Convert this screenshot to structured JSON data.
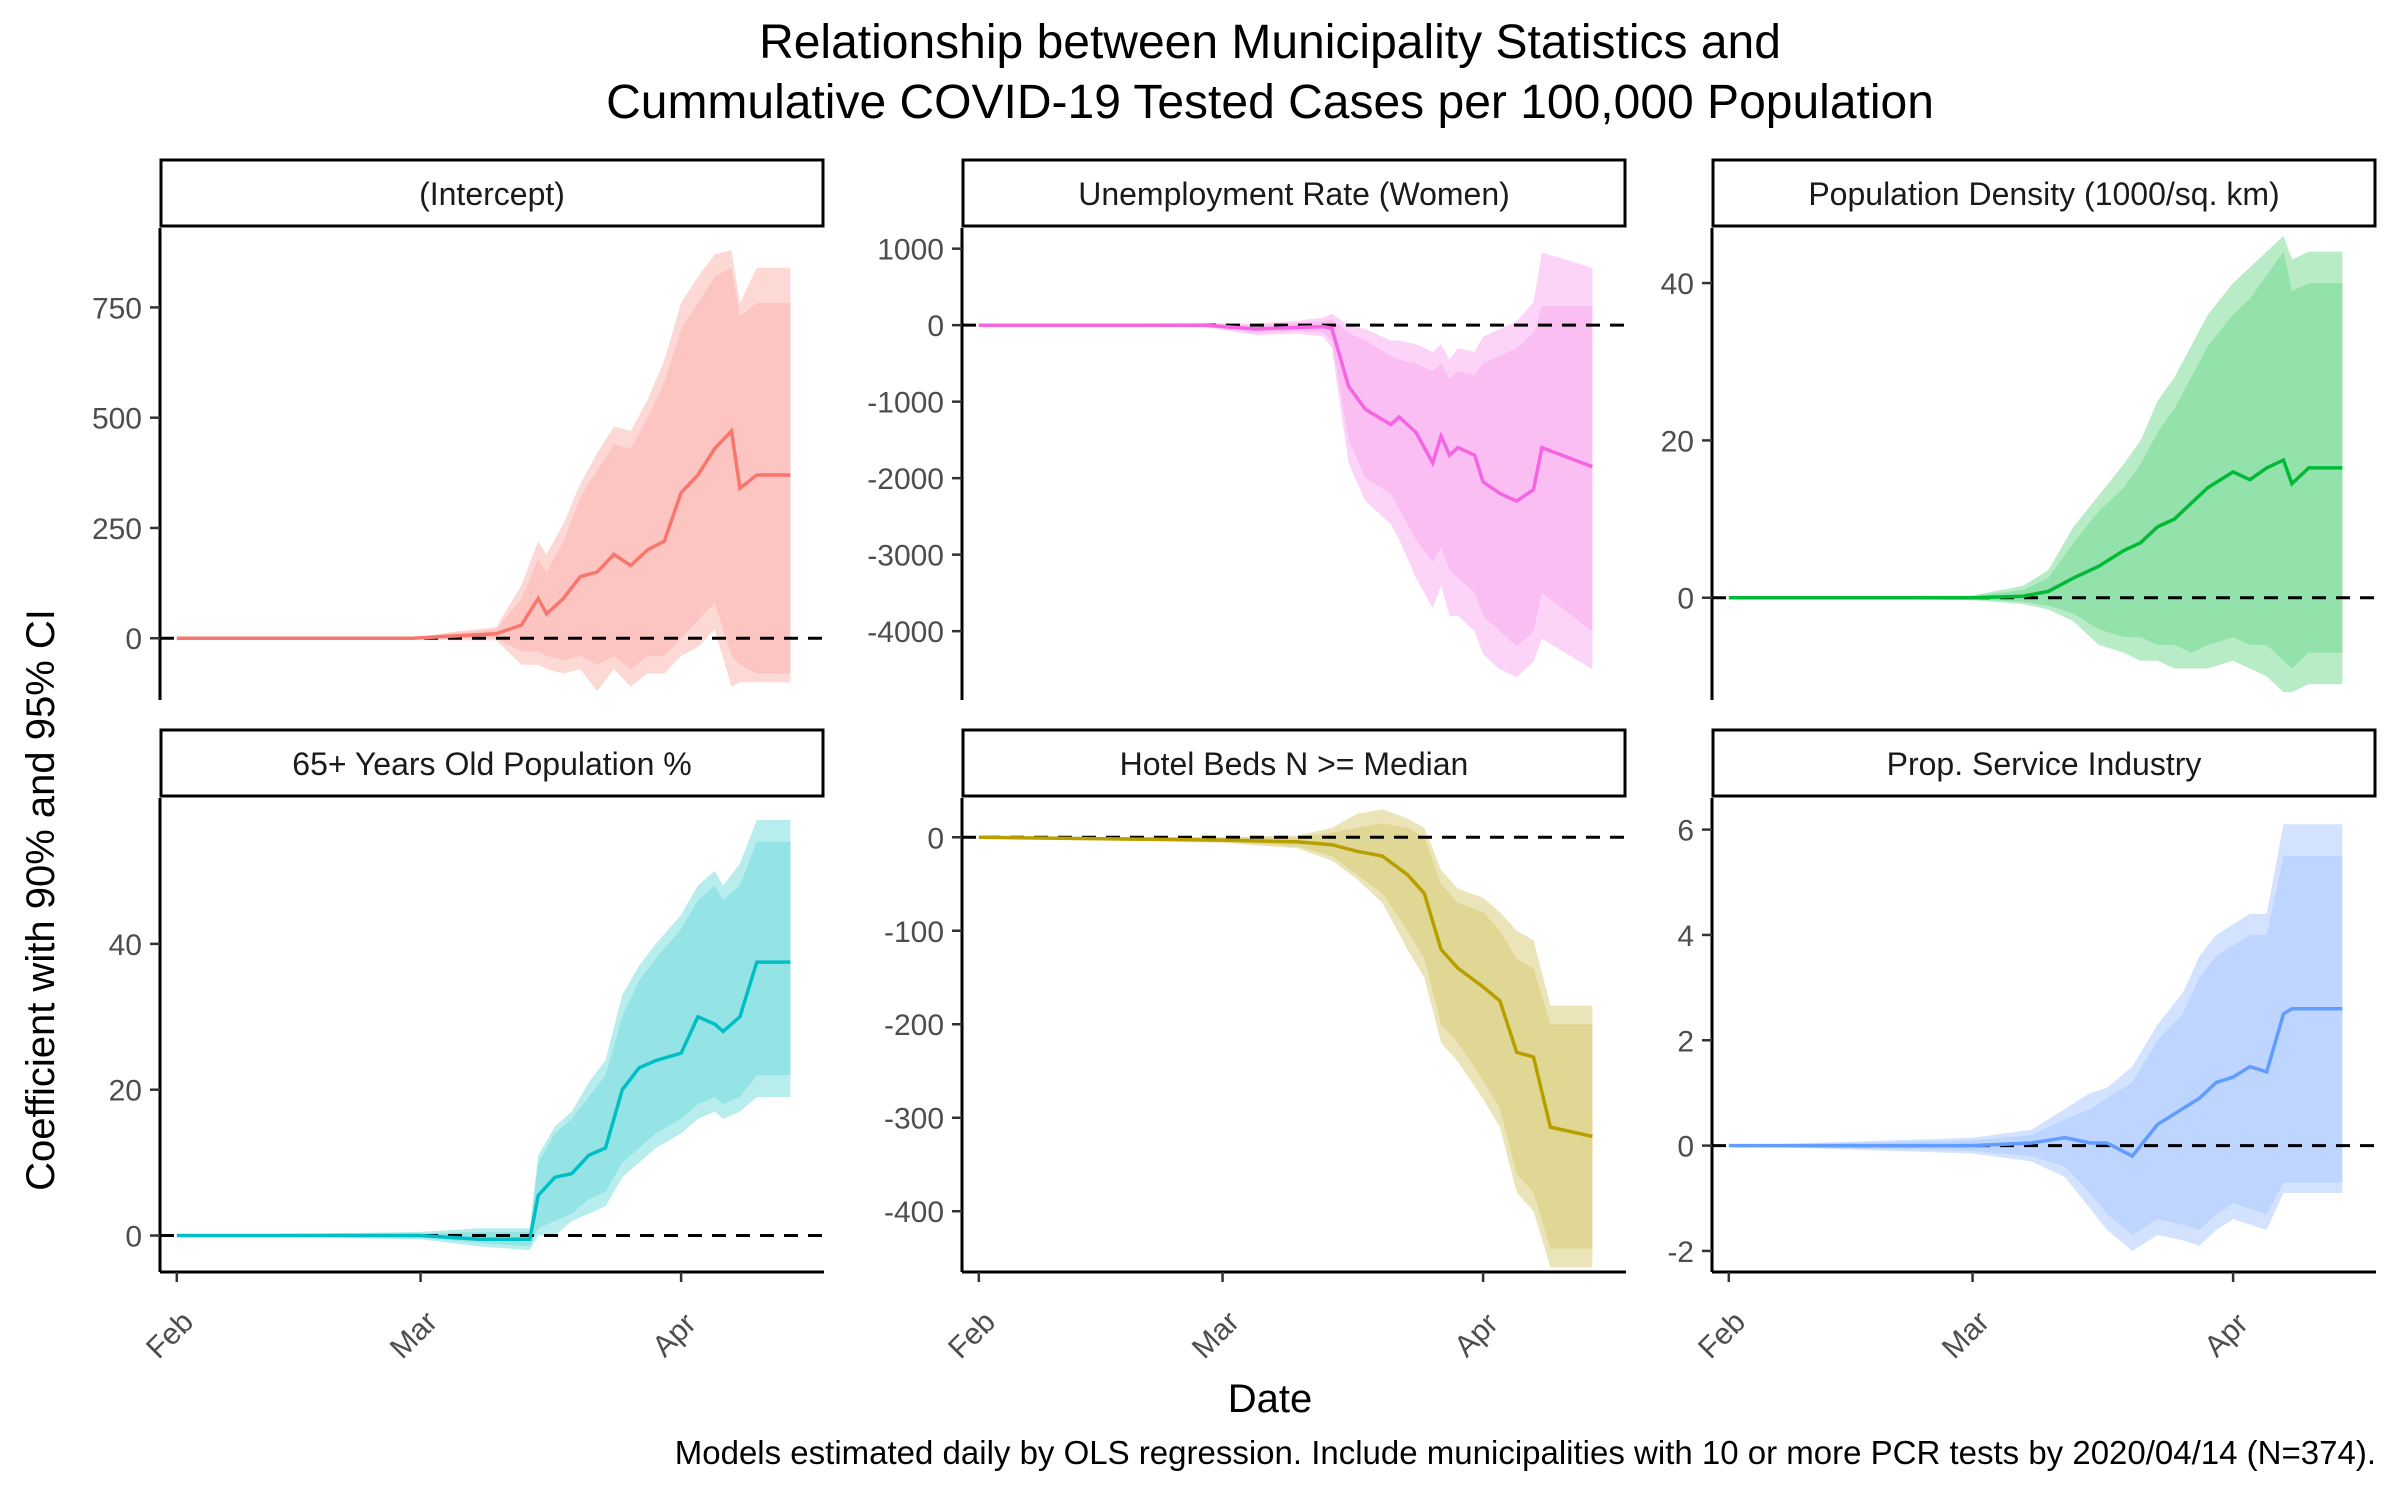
{
  "title_line1": "Relationship between Municipality Statistics and",
  "title_line2": "Cummulative COVID-19 Tested Cases per 100,000 Population",
  "xlabel": "Date",
  "ylabel": "Coefficient with 90% and 95% CI",
  "caption": "Models estimated daily by OLS regression. Include municipalities with 10 or more PCR tests by 2020/04/14 (N=374).",
  "x_ticks": [
    "Feb",
    "Mar",
    "Apr"
  ],
  "chart_data": [
    {
      "type": "line",
      "title": "(Intercept)",
      "color": "#F8766D",
      "x_range": [
        "2020-02-01",
        "2020-04-14"
      ],
      "ylim": [
        -140,
        930
      ],
      "yticks": [
        0,
        250,
        500,
        750
      ],
      "x": [
        "2020-02-01",
        "2020-02-29",
        "2020-03-05",
        "2020-03-10",
        "2020-03-13",
        "2020-03-15",
        "2020-03-16",
        "2020-03-18",
        "2020-03-20",
        "2020-03-22",
        "2020-03-24",
        "2020-03-26",
        "2020-03-28",
        "2020-03-30",
        "2020-04-01",
        "2020-04-03",
        "2020-04-05",
        "2020-04-07",
        "2020-04-08",
        "2020-04-10",
        "2020-04-14"
      ],
      "estimate": [
        0,
        0,
        5,
        10,
        30,
        90,
        55,
        90,
        140,
        150,
        190,
        165,
        200,
        220,
        330,
        370,
        430,
        470,
        340,
        370,
        370
      ],
      "ci90": [
        [
          0,
          0
        ],
        [
          0,
          0
        ],
        [
          0,
          12
        ],
        [
          0,
          20
        ],
        [
          -30,
          90
        ],
        [
          -30,
          180
        ],
        [
          -40,
          150
        ],
        [
          -50,
          220
        ],
        [
          -40,
          320
        ],
        [
          -60,
          380
        ],
        [
          -40,
          440
        ],
        [
          -70,
          430
        ],
        [
          -40,
          500
        ],
        [
          -40,
          580
        ],
        [
          0,
          700
        ],
        [
          40,
          760
        ],
        [
          80,
          820
        ],
        [
          -40,
          840
        ],
        [
          -60,
          730
        ],
        [
          -80,
          760
        ],
        [
          -80,
          760
        ]
      ],
      "ci95": [
        [
          0,
          0
        ],
        [
          0,
          0
        ],
        [
          -5,
          15
        ],
        [
          -5,
          25
        ],
        [
          -60,
          120
        ],
        [
          -60,
          220
        ],
        [
          -70,
          190
        ],
        [
          -80,
          260
        ],
        [
          -70,
          350
        ],
        [
          -120,
          420
        ],
        [
          -70,
          480
        ],
        [
          -110,
          470
        ],
        [
          -80,
          540
        ],
        [
          -80,
          630
        ],
        [
          -40,
          760
        ],
        [
          -20,
          820
        ],
        [
          20,
          870
        ],
        [
          -110,
          880
        ],
        [
          -100,
          760
        ],
        [
          -100,
          840
        ],
        [
          -100,
          840
        ]
      ]
    },
    {
      "type": "line",
      "title": "Unemployment Rate (Women)",
      "color": "#F564E3",
      "x_range": [
        "2020-02-01",
        "2020-04-14"
      ],
      "ylim": [
        -4900,
        1270
      ],
      "yticks": [
        -4000,
        -3000,
        -2000,
        -1000,
        0,
        1000
      ],
      "x": [
        "2020-02-01",
        "2020-02-28",
        "2020-03-05",
        "2020-03-10",
        "2020-03-13",
        "2020-03-14",
        "2020-03-16",
        "2020-03-18",
        "2020-03-21",
        "2020-03-22",
        "2020-03-24",
        "2020-03-26",
        "2020-03-27",
        "2020-03-28",
        "2020-03-29",
        "2020-03-31",
        "2020-04-01",
        "2020-04-03",
        "2020-04-05",
        "2020-04-07",
        "2020-04-08",
        "2020-04-14"
      ],
      "estimate": [
        0,
        0,
        -50,
        -30,
        -20,
        -40,
        -800,
        -1100,
        -1300,
        -1200,
        -1400,
        -1800,
        -1450,
        -1700,
        -1600,
        -1700,
        -2050,
        -2200,
        -2300,
        -2150,
        -1600,
        -1850
      ],
      "ci90": [
        [
          0,
          0
        ],
        [
          -20,
          20
        ],
        [
          -100,
          0
        ],
        [
          -80,
          30
        ],
        [
          -100,
          50
        ],
        [
          -200,
          80
        ],
        [
          -1500,
          -100
        ],
        [
          -2000,
          -200
        ],
        [
          -2200,
          -400
        ],
        [
          -2400,
          -450
        ],
        [
          -2800,
          -500
        ],
        [
          -3100,
          -600
        ],
        [
          -2900,
          -500
        ],
        [
          -3200,
          -700
        ],
        [
          -3300,
          -600
        ],
        [
          -3500,
          -650
        ],
        [
          -3800,
          -500
        ],
        [
          -4000,
          -400
        ],
        [
          -4200,
          -300
        ],
        [
          -4000,
          -100
        ],
        [
          -3500,
          250
        ],
        [
          -4000,
          250
        ]
      ],
      "ci95": [
        [
          0,
          0
        ],
        [
          -30,
          30
        ],
        [
          -130,
          20
        ],
        [
          -110,
          60
        ],
        [
          -150,
          100
        ],
        [
          -300,
          150
        ],
        [
          -1800,
          0
        ],
        [
          -2300,
          -50
        ],
        [
          -2600,
          -200
        ],
        [
          -2800,
          -200
        ],
        [
          -3300,
          -250
        ],
        [
          -3700,
          -350
        ],
        [
          -3400,
          -250
        ],
        [
          -3800,
          -450
        ],
        [
          -3800,
          -300
        ],
        [
          -4000,
          -350
        ],
        [
          -4300,
          -150
        ],
        [
          -4500,
          -50
        ],
        [
          -4600,
          50
        ],
        [
          -4400,
          300
        ],
        [
          -4100,
          950
        ],
        [
          -4500,
          750
        ]
      ]
    },
    {
      "type": "line",
      "title": "Population Density (1000/sq. km)",
      "color": "#00BA38",
      "x_range": [
        "2020-02-01",
        "2020-04-14"
      ],
      "ylim": [
        -13,
        47
      ],
      "yticks": [
        0,
        20,
        40
      ],
      "x": [
        "2020-02-01",
        "2020-03-01",
        "2020-03-07",
        "2020-03-10",
        "2020-03-13",
        "2020-03-16",
        "2020-03-19",
        "2020-03-21",
        "2020-03-23",
        "2020-03-25",
        "2020-03-27",
        "2020-03-29",
        "2020-04-01",
        "2020-04-03",
        "2020-04-05",
        "2020-04-07",
        "2020-04-08",
        "2020-04-10",
        "2020-04-14"
      ],
      "estimate": [
        0,
        0,
        0.2,
        0.8,
        2.5,
        4,
        6,
        7,
        9,
        10,
        12,
        14,
        16,
        15,
        16.5,
        17.5,
        14.5,
        16.5,
        16.5
      ],
      "ci90": [
        [
          0,
          0
        ],
        [
          -0.2,
          0.2
        ],
        [
          -0.5,
          1
        ],
        [
          -1,
          2.5
        ],
        [
          -2,
          7
        ],
        [
          -4,
          11
        ],
        [
          -5,
          14
        ],
        [
          -5,
          17
        ],
        [
          -6,
          21
        ],
        [
          -6,
          24
        ],
        [
          -7,
          28
        ],
        [
          -6,
          32
        ],
        [
          -5,
          36
        ],
        [
          -6,
          38
        ],
        [
          -6,
          41
        ],
        [
          -8,
          44
        ],
        [
          -9,
          39
        ],
        [
          -7,
          40
        ],
        [
          -7,
          40
        ]
      ],
      "ci95": [
        [
          0,
          0
        ],
        [
          -0.3,
          0.3
        ],
        [
          -0.8,
          1.5
        ],
        [
          -1.5,
          3.5
        ],
        [
          -3,
          9
        ],
        [
          -6,
          13
        ],
        [
          -7,
          17
        ],
        [
          -8,
          20
        ],
        [
          -8,
          25
        ],
        [
          -9,
          28
        ],
        [
          -9,
          32
        ],
        [
          -9,
          36
        ],
        [
          -8,
          40
        ],
        [
          -9,
          42
        ],
        [
          -10,
          44
        ],
        [
          -12,
          46
        ],
        [
          -12,
          43
        ],
        [
          -11,
          44
        ],
        [
          -11,
          44
        ]
      ]
    },
    {
      "type": "line",
      "title": "65+ Years Old Population %",
      "color": "#00BFC4",
      "x_range": [
        "2020-02-01",
        "2020-04-14"
      ],
      "ylim": [
        -5,
        60
      ],
      "yticks": [
        0,
        20,
        40
      ],
      "x": [
        "2020-02-01",
        "2020-03-01",
        "2020-03-08",
        "2020-03-14",
        "2020-03-15",
        "2020-03-17",
        "2020-03-19",
        "2020-03-21",
        "2020-03-23",
        "2020-03-25",
        "2020-03-27",
        "2020-03-29",
        "2020-04-01",
        "2020-04-03",
        "2020-04-05",
        "2020-04-06",
        "2020-04-08",
        "2020-04-10",
        "2020-04-14"
      ],
      "estimate": [
        0,
        0,
        -0.5,
        -0.5,
        5.5,
        8,
        8.5,
        11,
        12,
        20,
        23,
        24,
        25,
        30,
        29,
        28,
        30,
        37.5,
        37.5
      ],
      "ci90": [
        [
          0,
          0
        ],
        [
          -0.3,
          0.3
        ],
        [
          -1,
          0.5
        ],
        [
          -1.5,
          0.5
        ],
        [
          1,
          10
        ],
        [
          2,
          14
        ],
        [
          3,
          16
        ],
        [
          5,
          19
        ],
        [
          6,
          22
        ],
        [
          10,
          30
        ],
        [
          12,
          35
        ],
        [
          14,
          38
        ],
        [
          16,
          42
        ],
        [
          18,
          46
        ],
        [
          19,
          48
        ],
        [
          18,
          46
        ],
        [
          19,
          48
        ],
        [
          22,
          54
        ],
        [
          22,
          54
        ]
      ],
      "ci95": [
        [
          0,
          0
        ],
        [
          -0.5,
          0.5
        ],
        [
          -1.5,
          1
        ],
        [
          -2,
          1
        ],
        [
          0,
          11
        ],
        [
          0,
          15
        ],
        [
          2,
          17
        ],
        [
          3,
          21
        ],
        [
          4,
          24
        ],
        [
          8,
          33
        ],
        [
          10,
          37
        ],
        [
          12,
          40
        ],
        [
          14,
          44
        ],
        [
          16,
          48
        ],
        [
          17,
          50
        ],
        [
          16,
          48
        ],
        [
          17,
          51
        ],
        [
          19,
          57
        ],
        [
          19,
          57
        ]
      ]
    },
    {
      "type": "line",
      "title": "Hotel Beds N >= Median",
      "color": "#B79F00",
      "x_range": [
        "2020-02-01",
        "2020-04-14"
      ],
      "ylim": [
        -465,
        42
      ],
      "yticks": [
        -400,
        -300,
        -200,
        -100,
        0
      ],
      "x": [
        "2020-02-01",
        "2020-03-01",
        "2020-03-10",
        "2020-03-14",
        "2020-03-17",
        "2020-03-20",
        "2020-03-23",
        "2020-03-25",
        "2020-03-27",
        "2020-03-29",
        "2020-04-01",
        "2020-04-03",
        "2020-04-05",
        "2020-04-07",
        "2020-04-09",
        "2020-04-14"
      ],
      "estimate": [
        0,
        -3,
        -5,
        -8,
        -15,
        -20,
        -40,
        -60,
        -120,
        -140,
        -160,
        -175,
        -230,
        -235,
        -310,
        -320
      ],
      "ci90": [
        [
          0,
          0
        ],
        [
          -5,
          0
        ],
        [
          -10,
          0
        ],
        [
          -20,
          5
        ],
        [
          -40,
          10
        ],
        [
          -60,
          15
        ],
        [
          -100,
          10
        ],
        [
          -130,
          0
        ],
        [
          -200,
          -50
        ],
        [
          -220,
          -70
        ],
        [
          -260,
          -80
        ],
        [
          -290,
          -100
        ],
        [
          -360,
          -130
        ],
        [
          -380,
          -140
        ],
        [
          -440,
          -200
        ],
        [
          -440,
          -200
        ]
      ],
      "ci95": [
        [
          0,
          0
        ],
        [
          -6,
          0
        ],
        [
          -12,
          2
        ],
        [
          -25,
          10
        ],
        [
          -45,
          25
        ],
        [
          -70,
          30
        ],
        [
          -120,
          20
        ],
        [
          -150,
          10
        ],
        [
          -220,
          -35
        ],
        [
          -240,
          -55
        ],
        [
          -280,
          -65
        ],
        [
          -310,
          -80
        ],
        [
          -380,
          -100
        ],
        [
          -400,
          -110
        ],
        [
          -460,
          -180
        ],
        [
          -460,
          -180
        ]
      ]
    },
    {
      "type": "line",
      "title": "Prop. Service Industry",
      "color": "#619CFF",
      "x_range": [
        "2020-02-01",
        "2020-04-14"
      ],
      "ylim": [
        -2.4,
        6.6
      ],
      "yticks": [
        -2,
        0,
        2,
        4,
        6
      ],
      "x": [
        "2020-02-01",
        "2020-03-01",
        "2020-03-08",
        "2020-03-12",
        "2020-03-15",
        "2020-03-17",
        "2020-03-20",
        "2020-03-23",
        "2020-03-26",
        "2020-03-28",
        "2020-03-30",
        "2020-04-01",
        "2020-04-03",
        "2020-04-05",
        "2020-04-07",
        "2020-04-08",
        "2020-04-14"
      ],
      "estimate": [
        0,
        0,
        0.05,
        0.15,
        0.05,
        0.05,
        -0.2,
        0.4,
        0.7,
        0.9,
        1.2,
        1.3,
        1.5,
        1.4,
        2.5,
        2.6,
        2.6
      ],
      "ci90": [
        [
          0,
          0
        ],
        [
          -0.1,
          0.1
        ],
        [
          -0.2,
          0.2
        ],
        [
          -0.4,
          0.5
        ],
        [
          -0.9,
          0.7
        ],
        [
          -1.3,
          0.9
        ],
        [
          -1.7,
          1.2
        ],
        [
          -1.4,
          2
        ],
        [
          -1.5,
          2.5
        ],
        [
          -1.6,
          3.2
        ],
        [
          -1.3,
          3.6
        ],
        [
          -1.1,
          3.8
        ],
        [
          -1.2,
          4
        ],
        [
          -1.3,
          4
        ],
        [
          -0.7,
          5.5
        ],
        [
          -0.7,
          5.5
        ],
        [
          -0.7,
          5.5
        ]
      ],
      "ci95": [
        [
          0,
          0
        ],
        [
          -0.15,
          0.15
        ],
        [
          -0.3,
          0.3
        ],
        [
          -0.6,
          0.7
        ],
        [
          -1.2,
          1
        ],
        [
          -1.6,
          1.1
        ],
        [
          -2,
          1.5
        ],
        [
          -1.7,
          2.3
        ],
        [
          -1.8,
          2.9
        ],
        [
          -1.9,
          3.6
        ],
        [
          -1.6,
          4
        ],
        [
          -1.4,
          4.2
        ],
        [
          -1.5,
          4.4
        ],
        [
          -1.6,
          4.4
        ],
        [
          -0.9,
          6.1
        ],
        [
          -0.9,
          6.1
        ],
        [
          -0.9,
          6.1
        ]
      ]
    }
  ]
}
